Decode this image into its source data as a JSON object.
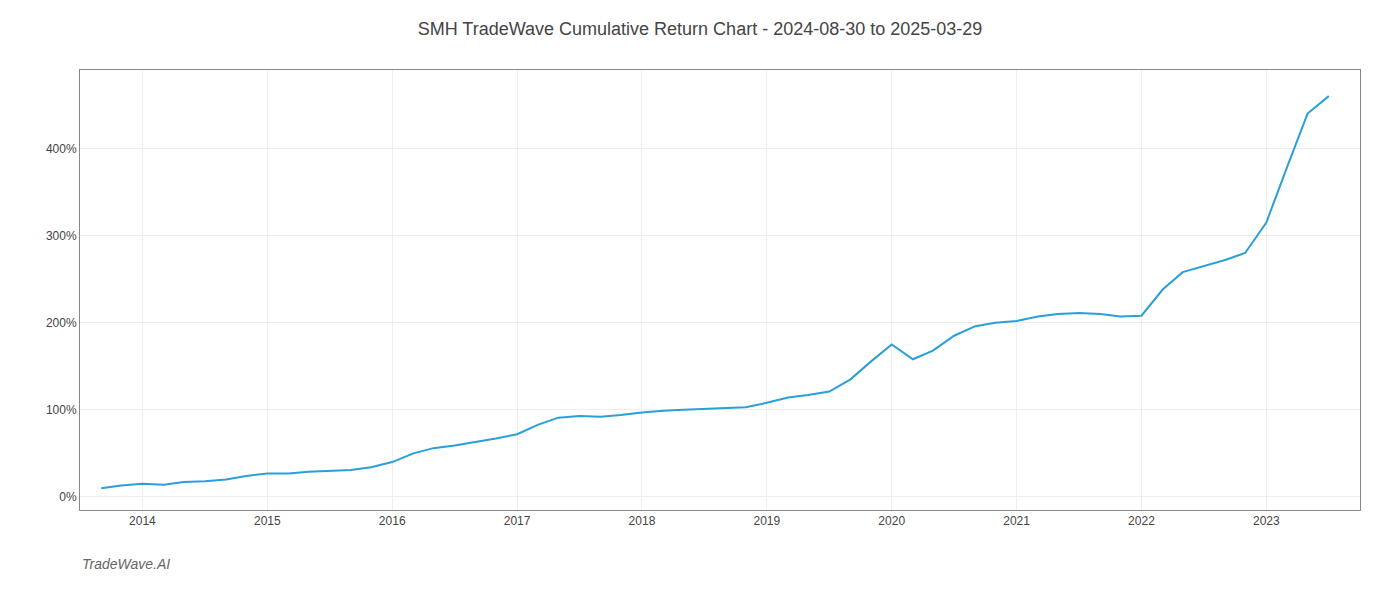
{
  "chart_data": {
    "type": "line",
    "title": "SMH TradeWave Cumulative Return Chart - 2024-08-30 to 2025-03-29",
    "annotations": [
      "TradeWave.AI"
    ],
    "x": [
      2013.67,
      2013.83,
      2014.0,
      2014.17,
      2014.33,
      2014.5,
      2014.67,
      2014.83,
      2015.0,
      2015.17,
      2015.33,
      2015.5,
      2015.67,
      2015.83,
      2016.0,
      2016.17,
      2016.33,
      2016.5,
      2016.67,
      2016.83,
      2017.0,
      2017.17,
      2017.33,
      2017.5,
      2017.67,
      2017.83,
      2018.0,
      2018.17,
      2018.33,
      2018.5,
      2018.67,
      2018.83,
      2019.0,
      2019.17,
      2019.33,
      2019.5,
      2019.67,
      2019.83,
      2020.0,
      2020.17,
      2020.33,
      2020.5,
      2020.67,
      2020.83,
      2021.0,
      2021.17,
      2021.33,
      2021.5,
      2021.67,
      2021.83,
      2022.0,
      2022.17,
      2022.33,
      2022.5,
      2022.67,
      2022.83,
      2023.0,
      2023.17,
      2023.33,
      2023.5
    ],
    "values": [
      10,
      13,
      15,
      14,
      17,
      18,
      20,
      24,
      27,
      27,
      29,
      30,
      31,
      34,
      40,
      50,
      56,
      59,
      63,
      67,
      72,
      83,
      91,
      93,
      92,
      94,
      97,
      99,
      100,
      101,
      102,
      103,
      108,
      114,
      117,
      121,
      135,
      155,
      175,
      158,
      168,
      185,
      196,
      200,
      202,
      207,
      210,
      211,
      210,
      207,
      208,
      238,
      258,
      265,
      272,
      280,
      315,
      380,
      440,
      460
    ],
    "color": "#2a9fd8",
    "xlim": [
      2013.5,
      2023.75
    ],
    "xticks": [
      2014,
      2015,
      2016,
      2017,
      2018,
      2019,
      2020,
      2021,
      2022,
      2023
    ],
    "ylim": [
      -15,
      490
    ],
    "yticks": [
      {
        "value": 0,
        "label": "0%"
      },
      {
        "value": 100,
        "label": "100%"
      },
      {
        "value": 200,
        "label": "200%"
      },
      {
        "value": 300,
        "label": "300%"
      },
      {
        "value": 400,
        "label": "400%"
      }
    ],
    "grid": true
  }
}
